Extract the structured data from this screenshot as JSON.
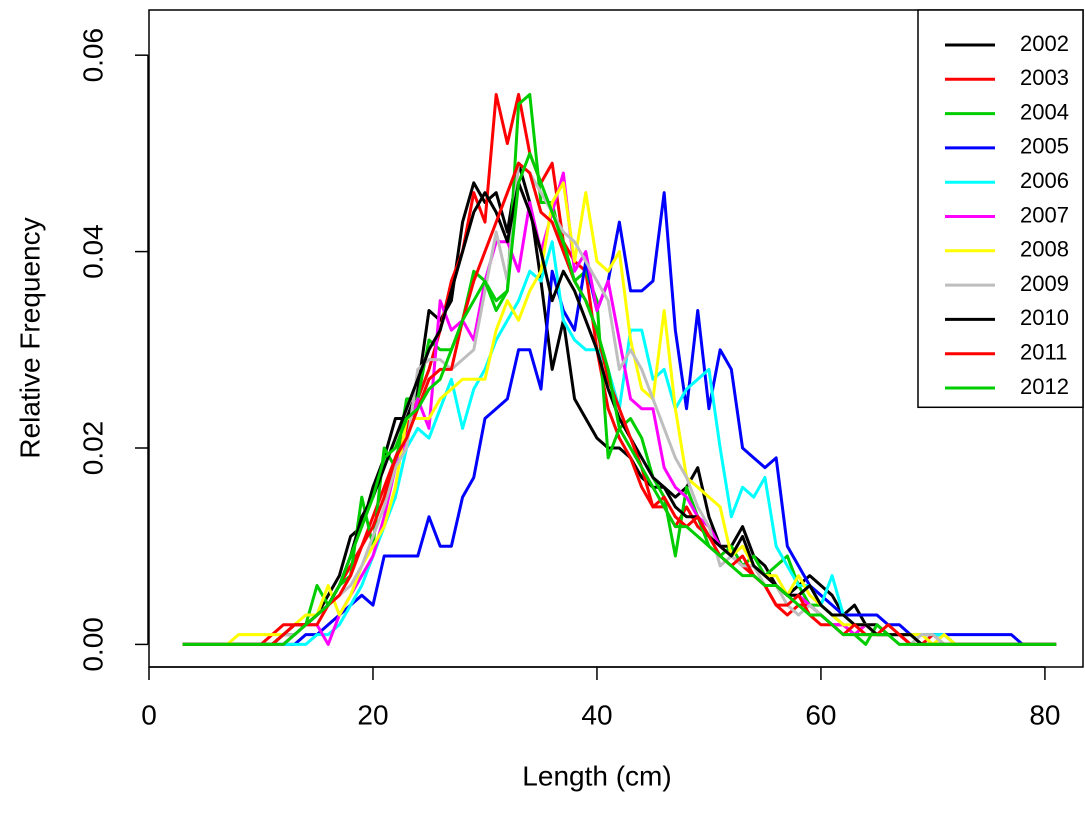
{
  "chart_data": {
    "type": "line",
    "x_label": "Length (cm)",
    "y_label": "Relative Frequency",
    "x": [
      3,
      4,
      5,
      6,
      7,
      8,
      9,
      10,
      11,
      12,
      13,
      14,
      15,
      16,
      17,
      18,
      19,
      20,
      21,
      22,
      23,
      24,
      25,
      26,
      27,
      28,
      29,
      30,
      31,
      32,
      33,
      34,
      35,
      36,
      37,
      38,
      39,
      40,
      41,
      42,
      43,
      44,
      45,
      46,
      47,
      48,
      49,
      50,
      51,
      52,
      53,
      54,
      55,
      56,
      57,
      58,
      59,
      60,
      61,
      62,
      63,
      64,
      65,
      66,
      67,
      68,
      69,
      70,
      71,
      72,
      73,
      74,
      75,
      76,
      77,
      78,
      79,
      80,
      81
    ],
    "xlim": [
      0,
      83.4
    ],
    "ylim": [
      -0.0023,
      0.0646
    ],
    "xticks": [
      0,
      20,
      40,
      60,
      80
    ],
    "yticks": [
      {
        "value": 0,
        "label": "0.00"
      },
      {
        "value": 0.02,
        "label": "0.02"
      },
      {
        "value": 0.04,
        "label": "0.04"
      },
      {
        "value": 0.06,
        "label": "0.06"
      }
    ],
    "legend": "topright",
    "series": [
      {
        "name": "2002",
        "color": "#000000",
        "values": [
          0,
          0,
          0,
          0,
          0,
          0,
          0,
          0,
          0,
          0.001,
          0.001,
          0.002,
          0.003,
          0.005,
          0.007,
          0.011,
          0.012,
          0.016,
          0.019,
          0.023,
          0.023,
          0.026,
          0.034,
          0.033,
          0.035,
          0.043,
          0.047,
          0.045,
          0.046,
          0.042,
          0.049,
          0.045,
          0.037,
          0.028,
          0.033,
          0.025,
          0.023,
          0.021,
          0.02,
          0.02,
          0.019,
          0.017,
          0.016,
          0.016,
          0.015,
          0.016,
          0.018,
          0.013,
          0.01,
          0.01,
          0.012,
          0.009,
          0.008,
          0.006,
          0.005,
          0.006,
          0.007,
          0.006,
          0.005,
          0.003,
          0.004,
          0.002,
          0.002,
          0.001,
          0.001,
          0.001,
          0.001,
          0.001,
          0.001,
          0,
          0,
          0,
          0,
          0,
          0,
          0,
          0,
          0,
          0
        ]
      },
      {
        "name": "2003",
        "color": "#ff0000",
        "values": [
          0,
          0,
          0,
          0,
          0,
          0,
          0,
          0,
          0.001,
          0.002,
          0.002,
          0.002,
          0.003,
          0.004,
          0.006,
          0.008,
          0.01,
          0.013,
          0.016,
          0.019,
          0.022,
          0.025,
          0.028,
          0.032,
          0.037,
          0.04,
          0.046,
          0.043,
          0.056,
          0.051,
          0.056,
          0.05,
          0.047,
          0.049,
          0.041,
          0.039,
          0.038,
          0.03,
          0.024,
          0.021,
          0.019,
          0.016,
          0.014,
          0.014,
          0.012,
          0.014,
          0.012,
          0.011,
          0.01,
          0.009,
          0.008,
          0.007,
          0.006,
          0.004,
          0.003,
          0.004,
          0.004,
          0.003,
          0.002,
          0.002,
          0.001,
          0.002,
          0.001,
          0.001,
          0.001,
          0,
          0,
          0.001,
          0,
          0,
          0,
          0,
          0,
          0,
          0,
          0,
          0,
          0,
          0
        ]
      },
      {
        "name": "2004",
        "color": "#00cd00",
        "values": [
          0,
          0,
          0,
          0,
          0,
          0,
          0,
          0,
          0,
          0,
          0.001,
          0.002,
          0.006,
          0.004,
          0.006,
          0.007,
          0.015,
          0.01,
          0.02,
          0.018,
          0.025,
          0.025,
          0.031,
          0.03,
          0.03,
          0.033,
          0.038,
          0.037,
          0.035,
          0.036,
          0.055,
          0.056,
          0.045,
          0.045,
          0.04,
          0.037,
          0.038,
          0.035,
          0.019,
          0.022,
          0.023,
          0.021,
          0.017,
          0.015,
          0.009,
          0.016,
          0.013,
          0.01,
          0.009,
          0.01,
          0.008,
          0.009,
          0.007,
          0.008,
          0.009,
          0.006,
          0.004,
          0.004,
          0.003,
          0.002,
          0.001,
          0,
          0.002,
          0.001,
          0.001,
          0.001,
          0,
          0,
          0,
          0,
          0,
          0,
          0,
          0,
          0,
          0,
          0,
          0,
          0
        ]
      },
      {
        "name": "2005",
        "color": "#0000ff",
        "values": [
          0,
          0,
          0,
          0,
          0,
          0,
          0,
          0,
          0,
          0,
          0,
          0.001,
          0.001,
          0.002,
          0.003,
          0.004,
          0.005,
          0.004,
          0.009,
          0.009,
          0.009,
          0.009,
          0.013,
          0.01,
          0.01,
          0.015,
          0.017,
          0.023,
          0.024,
          0.025,
          0.03,
          0.03,
          0.026,
          0.038,
          0.034,
          0.032,
          0.039,
          0.034,
          0.037,
          0.043,
          0.036,
          0.036,
          0.037,
          0.046,
          0.032,
          0.024,
          0.034,
          0.024,
          0.03,
          0.028,
          0.02,
          0.019,
          0.018,
          0.019,
          0.01,
          0.008,
          0.006,
          0.005,
          0.004,
          0.003,
          0.003,
          0.003,
          0.003,
          0.002,
          0.002,
          0.001,
          0.001,
          0.001,
          0.001,
          0.001,
          0.001,
          0.001,
          0.001,
          0.001,
          0.001,
          0,
          0,
          0,
          0
        ]
      },
      {
        "name": "2006",
        "color": "#00ffff",
        "values": [
          0,
          0,
          0,
          0,
          0,
          0,
          0,
          0,
          0,
          0,
          0,
          0,
          0.001,
          0.001,
          0.002,
          0.004,
          0.006,
          0.009,
          0.012,
          0.015,
          0.02,
          0.022,
          0.021,
          0.024,
          0.027,
          0.022,
          0.026,
          0.028,
          0.031,
          0.033,
          0.035,
          0.038,
          0.037,
          0.041,
          0.033,
          0.031,
          0.03,
          0.03,
          0.028,
          0.024,
          0.032,
          0.032,
          0.027,
          0.028,
          0.024,
          0.026,
          0.027,
          0.028,
          0.02,
          0.013,
          0.016,
          0.015,
          0.017,
          0.01,
          0.008,
          0.006,
          0.006,
          0.004,
          0.007,
          0.003,
          0.002,
          0.002,
          0.001,
          0.001,
          0.001,
          0.001,
          0.001,
          0.001,
          0.001,
          0,
          0,
          0,
          0,
          0,
          0,
          0,
          0,
          0,
          0
        ]
      },
      {
        "name": "2007",
        "color": "#ff00ff",
        "values": [
          0,
          0,
          0,
          0,
          0,
          0,
          0,
          0,
          0,
          0,
          0.001,
          0.002,
          0.002,
          0,
          0.003,
          0.005,
          0.007,
          0.009,
          0.013,
          0.018,
          0.021,
          0.025,
          0.022,
          0.035,
          0.032,
          0.033,
          0.031,
          0.037,
          0.041,
          0.041,
          0.038,
          0.045,
          0.04,
          0.044,
          0.048,
          0.038,
          0.04,
          0.034,
          0.037,
          0.031,
          0.025,
          0.024,
          0.024,
          0.018,
          0.016,
          0.015,
          0.013,
          0.012,
          0.01,
          0.009,
          0.008,
          0.008,
          0.007,
          0.006,
          0.005,
          0.005,
          0.004,
          0.003,
          0.002,
          0.002,
          0.001,
          0.002,
          0.001,
          0.001,
          0.001,
          0,
          0,
          0,
          0,
          0,
          0,
          0,
          0,
          0,
          0,
          0,
          0,
          0,
          0
        ]
      },
      {
        "name": "2008",
        "color": "#ffff00",
        "values": [
          0,
          0,
          0,
          0,
          0,
          0.001,
          0.001,
          0.001,
          0.001,
          0.001,
          0.002,
          0.003,
          0.003,
          0.006,
          0.003,
          0.005,
          0.008,
          0.01,
          0.012,
          0.016,
          0.023,
          0.023,
          0.023,
          0.025,
          0.026,
          0.027,
          0.027,
          0.027,
          0.032,
          0.035,
          0.033,
          0.036,
          0.038,
          0.045,
          0.047,
          0.039,
          0.046,
          0.039,
          0.038,
          0.04,
          0.031,
          0.026,
          0.025,
          0.034,
          0.024,
          0.017,
          0.016,
          0.015,
          0.014,
          0.009,
          0.01,
          0.008,
          0.007,
          0.007,
          0.005,
          0.007,
          0.005,
          0.004,
          0.003,
          0.002,
          0.002,
          0.002,
          0.001,
          0.001,
          0.001,
          0.001,
          0.001,
          0,
          0.001,
          0,
          0,
          0,
          0,
          0,
          0,
          0,
          0,
          0,
          0
        ]
      },
      {
        "name": "2009",
        "color": "#bebebe",
        "values": [
          0,
          0,
          0,
          0,
          0,
          0,
          0,
          0,
          0,
          0.001,
          0.001,
          0.002,
          0.003,
          0.004,
          0.005,
          0.006,
          0.008,
          0.011,
          0.014,
          0.018,
          0.02,
          0.028,
          0.029,
          0.029,
          0.028,
          0.029,
          0.03,
          0.036,
          0.042,
          0.037,
          0.049,
          0.048,
          0.046,
          0.044,
          0.042,
          0.041,
          0.039,
          0.037,
          0.035,
          0.028,
          0.03,
          0.028,
          0.025,
          0.022,
          0.019,
          0.017,
          0.014,
          0.012,
          0.008,
          0.009,
          0.008,
          0.008,
          0.006,
          0.006,
          0.004,
          0.003,
          0.004,
          0.003,
          0.002,
          0.001,
          0.001,
          0.001,
          0.001,
          0.001,
          0,
          0,
          0.001,
          0.001,
          0,
          0,
          0,
          0,
          0,
          0,
          0,
          0,
          0,
          0,
          0
        ]
      },
      {
        "name": "2010",
        "color": "#000000",
        "values": [
          0,
          0,
          0,
          0,
          0,
          0,
          0,
          0,
          0,
          0.001,
          0.002,
          0.002,
          0.003,
          0.004,
          0.006,
          0.009,
          0.013,
          0.015,
          0.018,
          0.021,
          0.024,
          0.027,
          0.03,
          0.032,
          0.036,
          0.04,
          0.044,
          0.046,
          0.044,
          0.041,
          0.047,
          0.044,
          0.04,
          0.035,
          0.038,
          0.036,
          0.033,
          0.03,
          0.026,
          0.023,
          0.021,
          0.019,
          0.017,
          0.016,
          0.014,
          0.013,
          0.013,
          0.011,
          0.01,
          0.009,
          0.011,
          0.008,
          0.007,
          0.006,
          0.005,
          0.005,
          0.006,
          0.004,
          0.003,
          0.003,
          0.002,
          0.002,
          0.001,
          0.001,
          0.001,
          0.001,
          0,
          0,
          0,
          0,
          0,
          0,
          0,
          0,
          0,
          0,
          0,
          0,
          0
        ]
      },
      {
        "name": "2011",
        "color": "#ff0000",
        "values": [
          0,
          0,
          0,
          0,
          0,
          0,
          0,
          0,
          0,
          0.001,
          0.002,
          0.002,
          0.002,
          0.004,
          0.005,
          0.007,
          0.01,
          0.012,
          0.015,
          0.019,
          0.021,
          0.024,
          0.027,
          0.028,
          0.028,
          0.033,
          0.037,
          0.04,
          0.043,
          0.046,
          0.049,
          0.048,
          0.044,
          0.043,
          0.04,
          0.037,
          0.035,
          0.032,
          0.027,
          0.024,
          0.021,
          0.018,
          0.014,
          0.015,
          0.013,
          0.012,
          0.013,
          0.011,
          0.009,
          0.008,
          0.009,
          0.007,
          0.006,
          0.004,
          0.004,
          0.005,
          0.003,
          0.002,
          0.002,
          0.001,
          0.002,
          0.001,
          0.001,
          0.002,
          0.001,
          0,
          0,
          0,
          0,
          0,
          0,
          0,
          0,
          0,
          0,
          0,
          0,
          0,
          0
        ]
      },
      {
        "name": "2012",
        "color": "#00cd00",
        "values": [
          0,
          0,
          0,
          0,
          0,
          0,
          0,
          0,
          0,
          0,
          0.001,
          0.002,
          0.003,
          0.004,
          0.006,
          0.009,
          0.012,
          0.015,
          0.019,
          0.02,
          0.023,
          0.024,
          0.026,
          0.027,
          0.03,
          0.033,
          0.035,
          0.037,
          0.034,
          0.036,
          0.047,
          0.05,
          0.047,
          0.044,
          0.041,
          0.037,
          0.035,
          0.032,
          0.028,
          0.022,
          0.02,
          0.018,
          0.016,
          0.014,
          0.012,
          0.012,
          0.011,
          0.01,
          0.009,
          0.008,
          0.007,
          0.007,
          0.006,
          0.006,
          0.005,
          0.004,
          0.003,
          0.003,
          0.002,
          0.001,
          0.001,
          0.001,
          0.001,
          0.001,
          0,
          0,
          0,
          0,
          0,
          0,
          0,
          0,
          0,
          0,
          0,
          0,
          0,
          0,
          0
        ]
      }
    ]
  }
}
